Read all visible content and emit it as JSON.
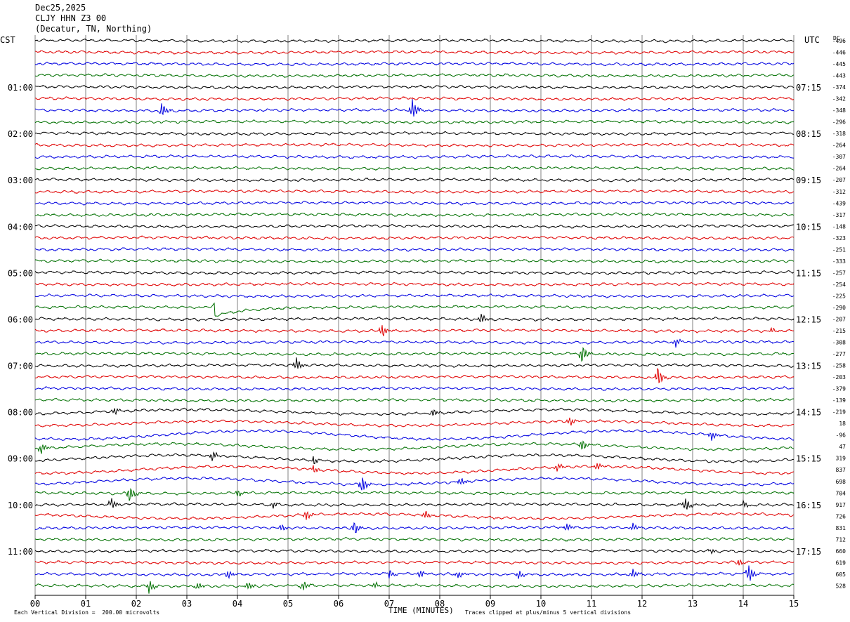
{
  "header": {
    "date": "Dec25,2025",
    "station": "CLJY HHN Z3 00",
    "location": "(Decatur, TN, Northing)"
  },
  "axes": {
    "left_label": "CST",
    "right_label": "UTC",
    "dc_label": "DC"
  },
  "footer": {
    "division_note": "Each Vertical Division =  200.00 microvolts",
    "xlabel": "TIME (MINUTES)",
    "clip_note": "Traces clipped at plus/minus 5 vertical divisions"
  },
  "colors": {
    "trace_cycle": [
      "#000000",
      "#e00000",
      "#0000e0",
      "#007000"
    ],
    "grid": "#808080"
  },
  "chart_data": {
    "type": "line",
    "title": "CLJY HHN Z3 00",
    "xlabel": "TIME (MINUTES)",
    "xlim": [
      0,
      15
    ],
    "x_ticks": [
      "00",
      "01",
      "02",
      "03",
      "04",
      "05",
      "06",
      "07",
      "08",
      "09",
      "10",
      "11",
      "12",
      "13",
      "14",
      "15"
    ],
    "row_interval_minutes": 15,
    "left_time_labels": [
      {
        "row": 4,
        "label": "01:00"
      },
      {
        "row": 8,
        "label": "02:00"
      },
      {
        "row": 12,
        "label": "03:00"
      },
      {
        "row": 16,
        "label": "04:00"
      },
      {
        "row": 20,
        "label": "05:00"
      },
      {
        "row": 24,
        "label": "06:00"
      },
      {
        "row": 28,
        "label": "07:00"
      },
      {
        "row": 32,
        "label": "08:00"
      },
      {
        "row": 36,
        "label": "09:00"
      },
      {
        "row": 40,
        "label": "10:00"
      },
      {
        "row": 44,
        "label": "11:00"
      }
    ],
    "right_time_labels": [
      {
        "row": 4,
        "label": "07:15"
      },
      {
        "row": 8,
        "label": "08:15"
      },
      {
        "row": 12,
        "label": "09:15"
      },
      {
        "row": 16,
        "label": "10:15"
      },
      {
        "row": 20,
        "label": "11:15"
      },
      {
        "row": 24,
        "label": "12:15"
      },
      {
        "row": 28,
        "label": "13:15"
      },
      {
        "row": 32,
        "label": "14:15"
      },
      {
        "row": 36,
        "label": "15:15"
      },
      {
        "row": 40,
        "label": "16:15"
      },
      {
        "row": 44,
        "label": "17:15"
      }
    ],
    "dc_offsets": [
      "-496",
      "-446",
      "-445",
      "-443",
      "-374",
      "-342",
      "-348",
      "-296",
      "-318",
      "-264",
      "-307",
      "-264",
      "-207",
      "-312",
      "-439",
      "-317",
      "-148",
      "-323",
      "-251",
      "-333",
      "-257",
      "-254",
      "-225",
      "-290",
      "-207",
      "-215",
      "-308",
      "-277",
      "-258",
      "-203",
      "-379",
      "-139",
      "-219",
      "18",
      "-96",
      "47",
      "319",
      "837",
      "698",
      "704",
      "917",
      "726",
      "831",
      "712",
      "660",
      "619",
      "605",
      "528"
    ],
    "events": [
      {
        "row": 6,
        "minute": 2.5,
        "amp": 1.0
      },
      {
        "row": 6,
        "minute": 7.45,
        "amp": 1.4
      },
      {
        "row": 24,
        "minute": 8.8,
        "amp": 0.8
      },
      {
        "row": 25,
        "minute": 6.85,
        "amp": 0.9
      },
      {
        "row": 25,
        "minute": 14.55,
        "amp": 0.4
      },
      {
        "row": 26,
        "minute": 12.65,
        "amp": 0.7
      },
      {
        "row": 27,
        "minute": 10.8,
        "amp": 1.4
      },
      {
        "row": 28,
        "minute": 5.15,
        "amp": 1.0
      },
      {
        "row": 29,
        "minute": 12.3,
        "amp": 1.5
      },
      {
        "row": 32,
        "minute": 1.55,
        "amp": 0.6
      },
      {
        "row": 32,
        "minute": 7.85,
        "amp": 0.6
      },
      {
        "row": 33,
        "minute": 10.55,
        "amp": 0.7
      },
      {
        "row": 34,
        "minute": 13.35,
        "amp": 0.8
      },
      {
        "row": 35,
        "minute": 0.1,
        "amp": 0.9
      },
      {
        "row": 35,
        "minute": 10.8,
        "amp": 0.9
      },
      {
        "row": 36,
        "minute": 3.5,
        "amp": 0.6
      },
      {
        "row": 36,
        "minute": 5.5,
        "amp": 0.6
      },
      {
        "row": 37,
        "minute": 5.5,
        "amp": 0.5
      },
      {
        "row": 37,
        "minute": 10.3,
        "amp": 0.6
      },
      {
        "row": 37,
        "minute": 11.1,
        "amp": 0.6
      },
      {
        "row": 38,
        "minute": 6.45,
        "amp": 1.3
      },
      {
        "row": 38,
        "minute": 8.4,
        "amp": 0.6
      },
      {
        "row": 39,
        "minute": 1.85,
        "amp": 1.3
      },
      {
        "row": 39,
        "minute": 4.0,
        "amp": 0.5
      },
      {
        "row": 40,
        "minute": 1.5,
        "amp": 0.8
      },
      {
        "row": 40,
        "minute": 4.7,
        "amp": 0.5
      },
      {
        "row": 40,
        "minute": 12.85,
        "amp": 1.0
      },
      {
        "row": 40,
        "minute": 14.0,
        "amp": 0.4
      },
      {
        "row": 41,
        "minute": 5.35,
        "amp": 0.7
      },
      {
        "row": 41,
        "minute": 7.7,
        "amp": 0.6
      },
      {
        "row": 42,
        "minute": 4.85,
        "amp": 0.5
      },
      {
        "row": 42,
        "minute": 6.3,
        "amp": 1.0
      },
      {
        "row": 42,
        "minute": 10.5,
        "amp": 0.6
      },
      {
        "row": 42,
        "minute": 11.8,
        "amp": 0.6
      },
      {
        "row": 44,
        "minute": 13.35,
        "amp": 0.4
      },
      {
        "row": 45,
        "minute": 13.9,
        "amp": 0.5
      },
      {
        "row": 46,
        "minute": 3.8,
        "amp": 0.6
      },
      {
        "row": 46,
        "minute": 7.0,
        "amp": 0.6
      },
      {
        "row": 46,
        "minute": 7.6,
        "amp": 0.7
      },
      {
        "row": 46,
        "minute": 8.35,
        "amp": 0.5
      },
      {
        "row": 46,
        "minute": 9.55,
        "amp": 0.6
      },
      {
        "row": 46,
        "minute": 11.8,
        "amp": 0.7
      },
      {
        "row": 46,
        "minute": 14.1,
        "amp": 1.3
      },
      {
        "row": 47,
        "minute": 2.25,
        "amp": 0.8
      },
      {
        "row": 47,
        "minute": 3.2,
        "amp": 0.5
      },
      {
        "row": 47,
        "minute": 4.2,
        "amp": 0.5
      },
      {
        "row": 47,
        "minute": 5.3,
        "amp": 0.6
      },
      {
        "row": 47,
        "minute": 6.7,
        "amp": 0.5
      }
    ],
    "swell_rows": [
      32,
      33,
      34,
      35,
      36,
      37,
      38,
      41
    ],
    "ramp": {
      "row": 23,
      "minute": 3.55
    }
  }
}
